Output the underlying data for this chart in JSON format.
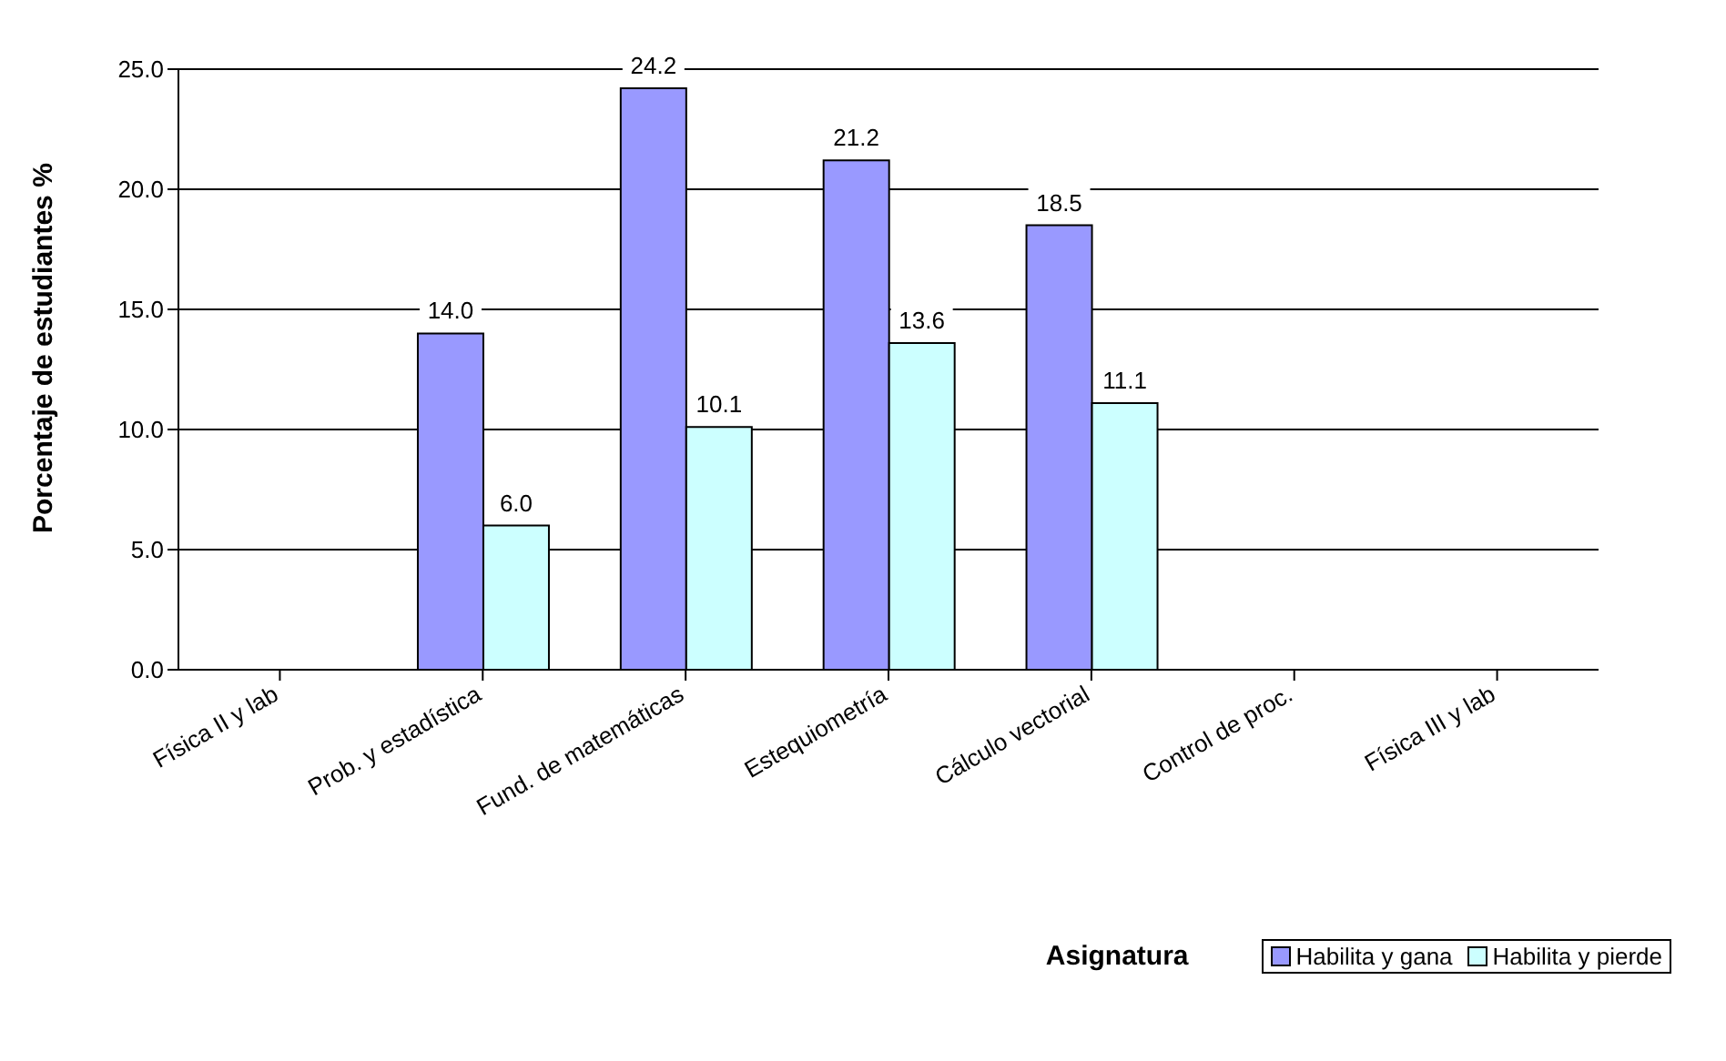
{
  "chart_data": {
    "type": "bar",
    "xlabel": "Asignatura",
    "ylabel": "Porcentaje de estudiantes %",
    "categories": [
      "Física II y lab",
      "Prob. y estadística",
      "Fund. de matemáticas",
      "Estequiometría",
      "Cálculo vectorial",
      "Control de proc.",
      "Física III y lab"
    ],
    "series": [
      {
        "name": "Habilita y gana",
        "color": "#9999ff",
        "values": [
          null,
          14.0,
          24.2,
          21.2,
          18.5,
          null,
          null
        ],
        "value_labels": [
          null,
          "14.0",
          "24.2",
          "21.2",
          "18.5",
          null,
          null
        ]
      },
      {
        "name": "Habilita y pierde",
        "color": "#ccffff",
        "values": [
          null,
          6.0,
          10.1,
          13.6,
          11.1,
          null,
          null
        ],
        "value_labels": [
          null,
          "6.0",
          "10.1",
          "13.6",
          "11.1",
          null,
          null
        ]
      }
    ],
    "ylim": [
      0,
      25
    ],
    "yticks": [
      {
        "value": 0,
        "label": "0.0"
      },
      {
        "value": 5,
        "label": "5.0"
      },
      {
        "value": 10,
        "label": "10.0"
      },
      {
        "value": 15,
        "label": "15.0"
      },
      {
        "value": 20,
        "label": "20.0"
      },
      {
        "value": 25,
        "label": "25.0"
      }
    ],
    "grid": "y",
    "legend": "bottom right"
  }
}
